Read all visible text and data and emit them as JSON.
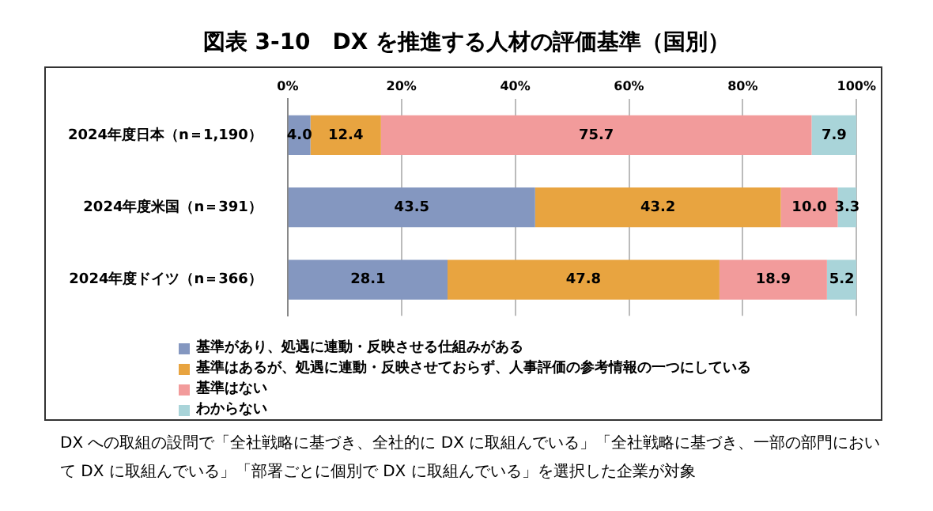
{
  "chart_data": {
    "type": "bar",
    "orientation": "horizontal",
    "stacked": true,
    "title": "図表 3-10　DX を推進する人材の評価基準（国別）",
    "categories": [
      "2024年度日本（n＝1,190）",
      "2024年度米国（n＝391）",
      "2024年度ドイツ（n＝366）"
    ],
    "series": [
      {
        "name": "基準があり、処遇に連動・反映させる仕組みがある",
        "color": "#8497c0",
        "values": [
          4.0,
          43.5,
          28.1
        ],
        "value_labels": [
          "4.0",
          "43.5",
          "28.1"
        ]
      },
      {
        "name": "基準はあるが、処遇に連動・反映させておらず、人事評価の参考情報の一つにしている",
        "color": "#e8a440",
        "values": [
          12.4,
          43.2,
          47.8
        ],
        "value_labels": [
          "12.4",
          "43.2",
          "47.8"
        ]
      },
      {
        "name": "基準はない",
        "color": "#f29b9b",
        "values": [
          75.7,
          10.0,
          18.9
        ],
        "value_labels": [
          "75.7",
          "10.0",
          "18.9"
        ]
      },
      {
        "name": "わからない",
        "color": "#a9d4d9",
        "values": [
          7.9,
          3.3,
          5.2
        ],
        "value_labels": [
          "7.9",
          "3.3",
          "5.2"
        ]
      }
    ],
    "xlim": [
      0,
      100
    ],
    "xticks": [
      {
        "value": 0,
        "label": "0%"
      },
      {
        "value": 20,
        "label": "20%"
      },
      {
        "value": 40,
        "label": "40%"
      },
      {
        "value": 60,
        "label": "60%"
      },
      {
        "value": 80,
        "label": "80%"
      },
      {
        "value": 100,
        "label": "100%"
      }
    ],
    "grid": "x",
    "legend": "bottom",
    "annotations": [
      "DX への取組の設問で「全社戦略に基づき、全社的に DX に取組んでいる」「全社戦略に基づき、一部の部門において DX に取組んでいる」「部署ごとに個別で DX に取組んでいる」を選択した企業が対象"
    ]
  }
}
